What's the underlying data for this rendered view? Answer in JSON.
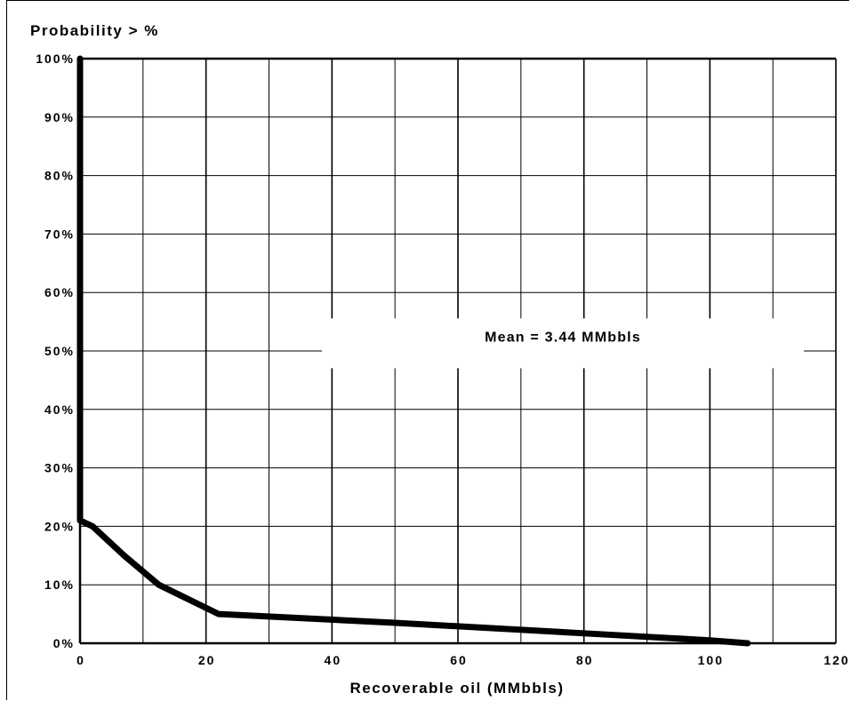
{
  "chart_data": {
    "type": "line",
    "ylabel": "Probability > %",
    "xlabel": "Recoverable oil (MMbbls)",
    "xlim": [
      0,
      120
    ],
    "ylim": [
      0,
      100
    ],
    "x_ticks": [
      0,
      20,
      40,
      60,
      80,
      100,
      120
    ],
    "x_tick_labels": [
      "0",
      "20",
      "40",
      "60",
      "80",
      "100",
      "120"
    ],
    "y_ticks": [
      0,
      10,
      20,
      30,
      40,
      50,
      60,
      70,
      80,
      90,
      100
    ],
    "y_tick_labels": [
      "0%",
      "10%",
      "20%",
      "30%",
      "40%",
      "50%",
      "60%",
      "70%",
      "80%",
      "90%",
      "100%"
    ],
    "grid": true,
    "grid_x_step": 10,
    "grid_y_step": 10,
    "line_color": "#000000",
    "series": [
      {
        "x": [
          0,
          0,
          2,
          7,
          12.5,
          22,
          50,
          80,
          100,
          106
        ],
        "y": [
          100,
          21,
          20,
          15,
          10,
          5,
          3.5,
          1.7,
          0.5,
          0
        ]
      }
    ],
    "annotation": {
      "text": "Mean = 3.44 MMbbls",
      "x": 70,
      "y": 51
    }
  }
}
